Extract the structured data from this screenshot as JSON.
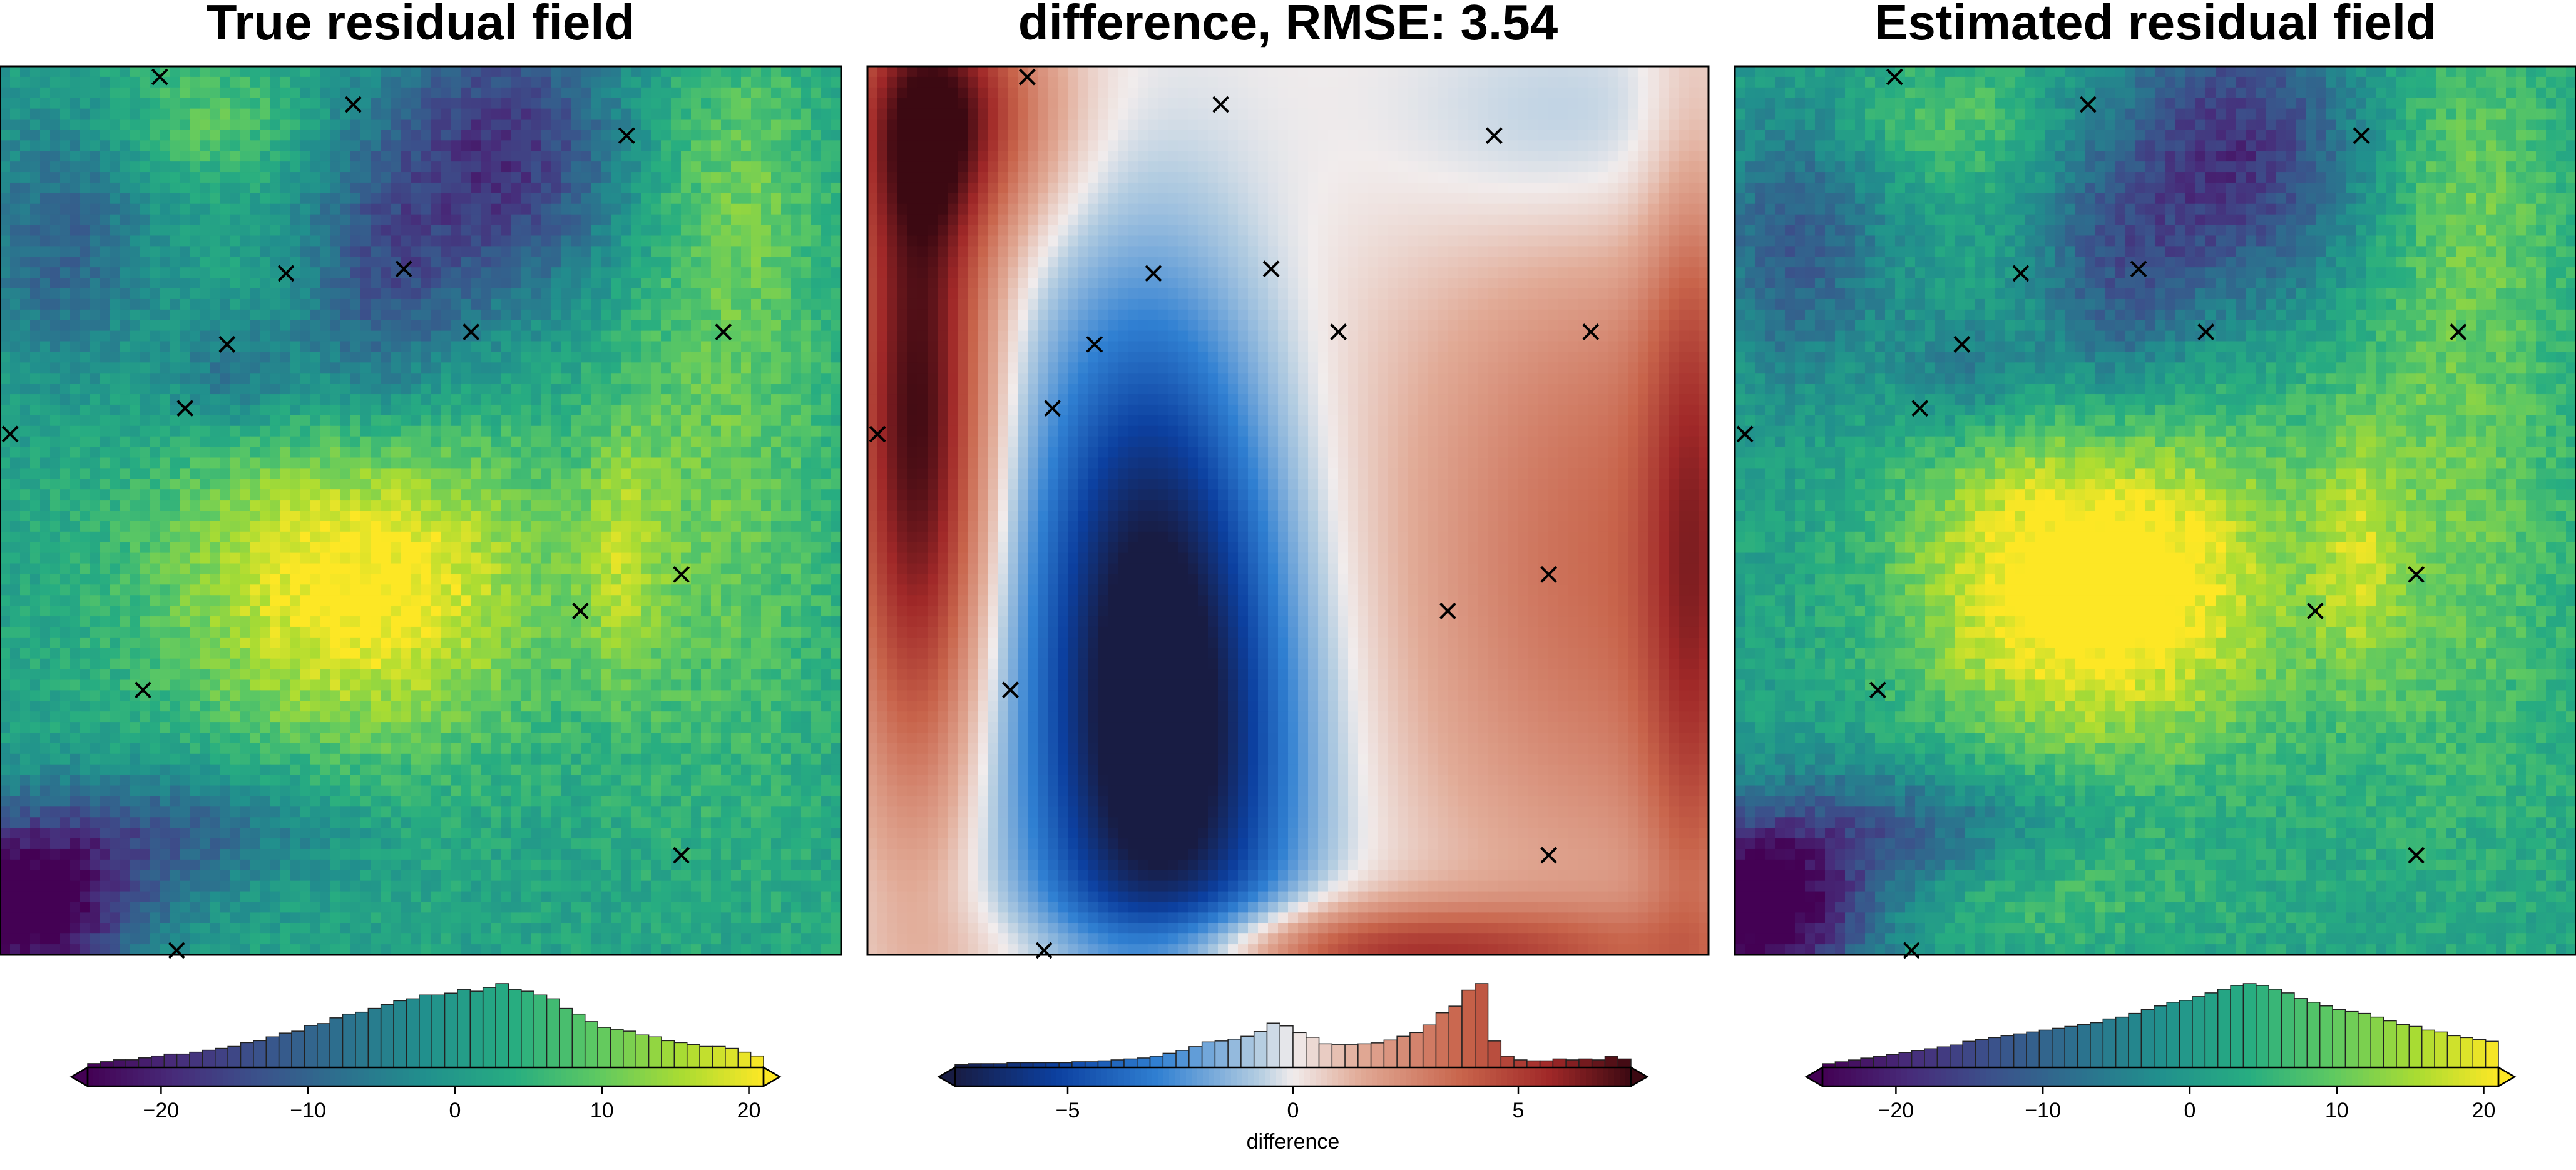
{
  "chart_data": [
    {
      "type": "heatmap",
      "title": "True residual field",
      "colormap": "viridis",
      "colorbar": {
        "range": [
          -25,
          21
        ],
        "ticks": [
          -20,
          -10,
          0,
          10,
          20
        ],
        "tick_labels": [
          "−20",
          "−10",
          "0",
          "10",
          "20"
        ],
        "label": "",
        "histogram": [
          2,
          3,
          4,
          4,
          5,
          6,
          7,
          7,
          8,
          9,
          10,
          11,
          13,
          14,
          16,
          18,
          19,
          22,
          23,
          26,
          28,
          29,
          31,
          33,
          35,
          36,
          38,
          38,
          39,
          41,
          40,
          42,
          44,
          41,
          40,
          38,
          36,
          31,
          28,
          24,
          21,
          20,
          19,
          17,
          16,
          14,
          13,
          12,
          11,
          11,
          10,
          8,
          6
        ]
      },
      "field": {
        "peak_value": 20,
        "low_value": -25,
        "features": [
          {
            "kind": "high",
            "label": "central high",
            "value": 19
          },
          {
            "kind": "high",
            "label": "eastern ridge",
            "value": 12
          },
          {
            "kind": "low",
            "label": "southwest low",
            "value": -25
          },
          {
            "kind": "low",
            "label": "northern trough",
            "value": -18
          }
        ]
      },
      "markers": "constraint points (x)"
    },
    {
      "type": "heatmap",
      "title": "difference, RMSE: 3.54",
      "colormap": "balance",
      "colorbar": {
        "range": [
          -7.5,
          7.5
        ],
        "ticks": [
          -5,
          0,
          5
        ],
        "tick_labels": [
          "−5",
          "0",
          "5"
        ],
        "label": "difference",
        "histogram": [
          3,
          4,
          4,
          4,
          5,
          5,
          5,
          5,
          5,
          6,
          6,
          7,
          8,
          9,
          10,
          12,
          15,
          18,
          22,
          27,
          28,
          30,
          33,
          38,
          47,
          44,
          37,
          32,
          25,
          24,
          24,
          25,
          26,
          29,
          33,
          37,
          45,
          58,
          65,
          82,
          89,
          28,
          12,
          8,
          7,
          7,
          9,
          8,
          9,
          8,
          12,
          9
        ]
      },
      "rmse": 3.54,
      "markers": "constraint points (x)"
    },
    {
      "type": "heatmap",
      "title": "Estimated residual field",
      "colormap": "viridis",
      "colorbar": {
        "range": [
          -25,
          21
        ],
        "ticks": [
          -20,
          -10,
          0,
          10,
          20
        ],
        "tick_labels": [
          "−20",
          "−10",
          "0",
          "10",
          "20"
        ],
        "label": "",
        "histogram": [
          2,
          3,
          4,
          5,
          6,
          7,
          8,
          9,
          10,
          11,
          12,
          14,
          15,
          16,
          17,
          18,
          19,
          20,
          21,
          22,
          23,
          24,
          26,
          27,
          29,
          31,
          33,
          35,
          36,
          38,
          40,
          42,
          44,
          45,
          44,
          42,
          40,
          37,
          35,
          33,
          31,
          30,
          29,
          27,
          25,
          23,
          22,
          20,
          19,
          17,
          16,
          15,
          14
        ]
      },
      "markers": "constraint points (x)"
    }
  ]
}
